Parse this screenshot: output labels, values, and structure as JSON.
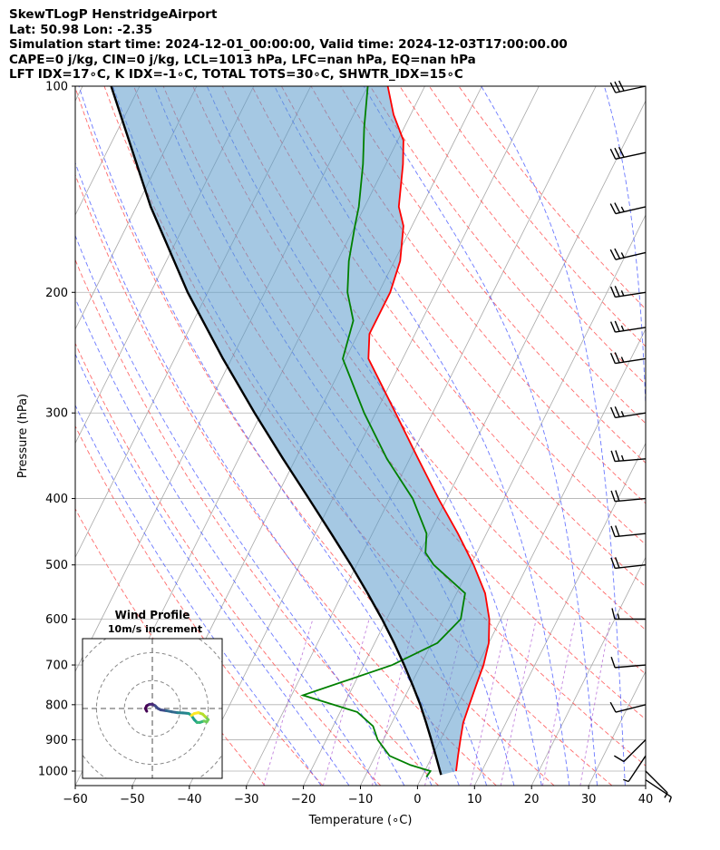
{
  "header": {
    "line1": "SkewTLogP HenstridgeAirport",
    "line2": "Lat: 50.98   Lon: -2.35",
    "line3": "Simulation start time: 2024-12-01_00:00:00, Valid time: 2024-12-03T17:00:00.00",
    "line4": "CAPE=0 j/kg, CIN=0 j/kg, LCL=1013 hPa, LFC=nan hPa, EQ=nan hPa",
    "line5": "LFT IDX=17∘C, K IDX=-1∘C, TOTAL TOTS=30∘C, SHWTR_IDX=15∘C"
  },
  "chart_data": {
    "type": "line",
    "title": "SkewTLogP HenstridgeAirport",
    "xlabel": "Temperature (∘C)",
    "ylabel": "Pressure (hPa)",
    "xlim": [
      -60,
      40
    ],
    "ylim": [
      1050,
      100
    ],
    "x_ticks": [
      -60,
      -50,
      -40,
      -30,
      -20,
      -10,
      0,
      10,
      20,
      30,
      40
    ],
    "y_ticks": [
      1000,
      900,
      800,
      700,
      600,
      500,
      400,
      300,
      200,
      100
    ],
    "series": [
      {
        "name": "Temperature",
        "color": "#ff0000",
        "points": [
          [
            1000,
            5.5
          ],
          [
            950,
            4.5
          ],
          [
            900,
            3.5
          ],
          [
            850,
            2.5
          ],
          [
            800,
            2
          ],
          [
            750,
            1.5
          ],
          [
            700,
            1
          ],
          [
            650,
            0
          ],
          [
            600,
            -2
          ],
          [
            550,
            -5
          ],
          [
            500,
            -9.5
          ],
          [
            450,
            -15
          ],
          [
            400,
            -21.5
          ],
          [
            350,
            -28.5
          ],
          [
            300,
            -36.5
          ],
          [
            250,
            -46
          ],
          [
            230,
            -48
          ],
          [
            200,
            -48
          ],
          [
            180,
            -49
          ],
          [
            160,
            -51.5
          ],
          [
            150,
            -54
          ],
          [
            130,
            -57
          ],
          [
            120,
            -59
          ],
          [
            110,
            -63
          ],
          [
            100,
            -66.5
          ]
        ]
      },
      {
        "name": "Dewpoint",
        "color": "#008000",
        "points": [
          [
            1020,
            0.8
          ],
          [
            1000,
            1
          ],
          [
            980,
            -3
          ],
          [
            950,
            -7.5
          ],
          [
            900,
            -11
          ],
          [
            860,
            -13
          ],
          [
            820,
            -17
          ],
          [
            775,
            -28
          ],
          [
            700,
            -15
          ],
          [
            650,
            -9
          ],
          [
            600,
            -7
          ],
          [
            550,
            -8.5
          ],
          [
            500,
            -16.5
          ],
          [
            480,
            -19
          ],
          [
            450,
            -20.5
          ],
          [
            400,
            -26
          ],
          [
            350,
            -34
          ],
          [
            300,
            -42
          ],
          [
            250,
            -50.5
          ],
          [
            220,
            -52
          ],
          [
            200,
            -55.5
          ],
          [
            180,
            -58
          ],
          [
            160,
            -60
          ],
          [
            150,
            -61
          ],
          [
            130,
            -64
          ],
          [
            115,
            -67
          ],
          [
            100,
            -70
          ]
        ]
      },
      {
        "name": "Parcel",
        "color": "#000000",
        "points": [
          [
            1013,
            3.2
          ],
          [
            950,
            0.6
          ],
          [
            900,
            -1.6
          ],
          [
            850,
            -4
          ],
          [
            800,
            -6.6
          ],
          [
            750,
            -9.6
          ],
          [
            700,
            -12.9
          ],
          [
            650,
            -16.6
          ],
          [
            600,
            -20.8
          ],
          [
            550,
            -25.6
          ],
          [
            500,
            -31
          ],
          [
            450,
            -37.2
          ],
          [
            400,
            -44.2
          ],
          [
            350,
            -52.2
          ],
          [
            300,
            -61.2
          ],
          [
            250,
            -71.5
          ],
          [
            200,
            -83.5
          ],
          [
            150,
            -97.5
          ],
          [
            100,
            -115
          ]
        ]
      }
    ],
    "dry_adiabats_theta_K": [
      243,
      253,
      263,
      273,
      283,
      293,
      303,
      313,
      323,
      333,
      343,
      353,
      363,
      373,
      383,
      393,
      403,
      413,
      423
    ],
    "moist_adiabats_T0_C": [
      -20,
      -15,
      -10,
      -5,
      0,
      5,
      10,
      15,
      20,
      25,
      30,
      35,
      40
    ],
    "mixing_ratio_lines_gkg": [
      0.4,
      1,
      2,
      4,
      7,
      10,
      16,
      24
    ],
    "wind_barbs": [
      {
        "p": 100,
        "u": 14,
        "v": 3
      },
      {
        "p": 125,
        "u": 14,
        "v": 3
      },
      {
        "p": 150,
        "u": 13,
        "v": 3
      },
      {
        "p": 175,
        "u": 13,
        "v": 3
      },
      {
        "p": 200,
        "u": 13,
        "v": 2
      },
      {
        "p": 225,
        "u": 13,
        "v": 2
      },
      {
        "p": 250,
        "u": 13,
        "v": 2
      },
      {
        "p": 300,
        "u": 13,
        "v": 2
      },
      {
        "p": 350,
        "u": 12,
        "v": 1
      },
      {
        "p": 400,
        "u": 11,
        "v": 1
      },
      {
        "p": 450,
        "u": 10,
        "v": 1
      },
      {
        "p": 500,
        "u": 9,
        "v": 1
      },
      {
        "p": 600,
        "u": 8,
        "v": 0
      },
      {
        "p": 700,
        "u": 6,
        "v": 0.5
      },
      {
        "p": 800,
        "u": 4,
        "v": 1
      },
      {
        "p": 900,
        "u": 3,
        "v": 3
      },
      {
        "p": 950,
        "u": 2,
        "v": 3
      },
      {
        "p": 1000,
        "u": -2,
        "v": 2
      },
      {
        "p": 1030,
        "u": -3,
        "v": 2
      }
    ],
    "hodograph": {
      "title": "Wind Profile",
      "subtitle": "10m/s increment",
      "rings_ms": [
        10,
        20,
        30
      ],
      "range_ms": 25,
      "points": [
        [
          -2,
          -1
        ],
        [
          -2.5,
          0
        ],
        [
          -2,
          1
        ],
        [
          -1,
          1.5
        ],
        [
          0,
          1.5
        ],
        [
          1,
          1
        ],
        [
          2,
          0
        ],
        [
          3,
          -0.5
        ],
        [
          5,
          -0.8
        ],
        [
          7,
          -1.2
        ],
        [
          9,
          -1.5
        ],
        [
          11,
          -1.6
        ],
        [
          13,
          -1.8
        ],
        [
          14,
          -2.5
        ],
        [
          15,
          -4
        ],
        [
          16,
          -5
        ],
        [
          17,
          -5
        ],
        [
          18.5,
          -4.5
        ],
        [
          19.5,
          -4.8
        ],
        [
          20,
          -4
        ],
        [
          19,
          -3
        ],
        [
          18,
          -2
        ],
        [
          16.5,
          -1.5
        ],
        [
          15,
          -1.8
        ],
        [
          14,
          -2.5
        ]
      ]
    }
  }
}
